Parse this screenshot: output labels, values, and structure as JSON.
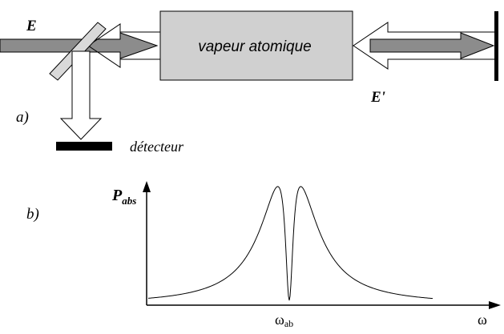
{
  "labels": {
    "E": "E",
    "box": "vapeur atomique",
    "E_prime": "E'",
    "part_a": "a)",
    "detector": "détecteur",
    "part_b": "b)",
    "y_axis": {
      "main": "P",
      "sub": "abs"
    },
    "x_marker": {
      "main": "ω",
      "sub": "ab"
    },
    "x_axis": "ω"
  }
}
